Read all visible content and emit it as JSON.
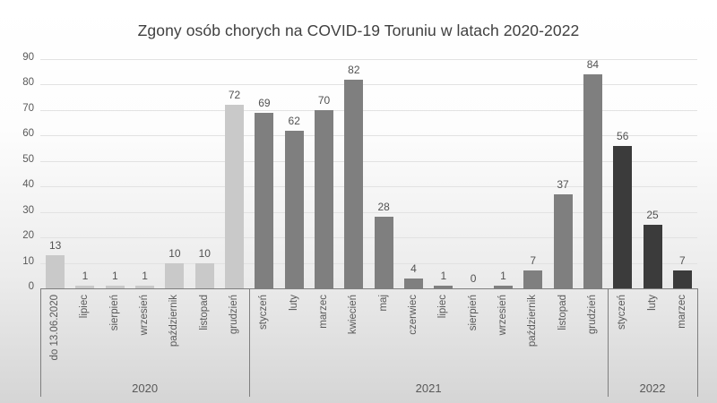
{
  "chart_data": {
    "type": "bar",
    "title": "Zgony osób chorych na COVID-19 Toruniu w latach 2020-2022",
    "xlabel": "",
    "ylabel": "",
    "ylim": [
      0,
      90
    ],
    "ytick_step": 10,
    "grid": true,
    "legend": "none",
    "value_labels": true,
    "groups": [
      {
        "label": "2020",
        "bar_color": "#c9c9c9",
        "categories": [
          "do 13.06.2020",
          "lipiec",
          "sierpień",
          "wrzesień",
          "październik",
          "listopad",
          "grudzień"
        ],
        "values": [
          13,
          1,
          1,
          1,
          10,
          10,
          72
        ]
      },
      {
        "label": "2021",
        "bar_color": "#7f7f7f",
        "categories": [
          "styczeń",
          "luty",
          "marzec",
          "kwiecień",
          "maj",
          "czerwiec",
          "lipiec",
          "sierpień",
          "wrzesień",
          "październik",
          "listopad",
          "grudzień"
        ],
        "values": [
          69,
          62,
          70,
          82,
          28,
          4,
          1,
          0,
          1,
          7,
          37,
          84
        ]
      },
      {
        "label": "2022",
        "bar_color": "#3b3b3b",
        "categories": [
          "styczeń",
          "luty",
          "marzec"
        ],
        "values": [
          56,
          25,
          7
        ]
      }
    ],
    "colors": {
      "title": "#404040",
      "axis_line": "#7f7f7f",
      "grid_line": "#e2e2e2",
      "tick_label": "#595959",
      "value_label": "#525252",
      "category_label": "#595959",
      "year_label": "#595959"
    }
  }
}
